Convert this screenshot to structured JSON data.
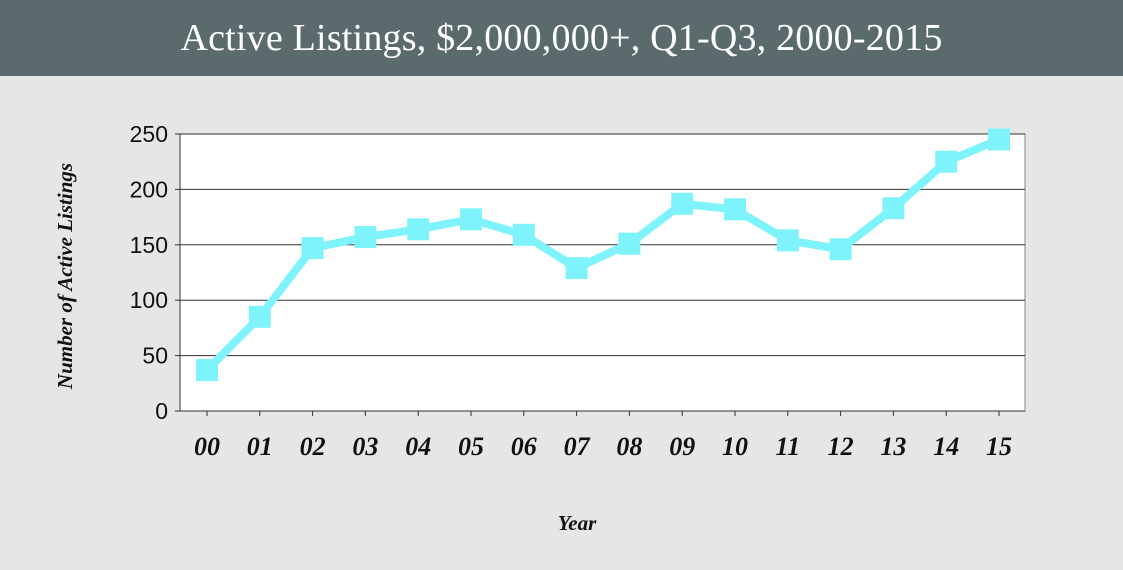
{
  "title": "Active Listings, $2,000,000+, Q1-Q3, 2000-2015",
  "colors": {
    "header_bg": "#5b6b6d",
    "page_bg": "#e6e6e6",
    "plot_bg": "#ffffff",
    "series": "#7ff3fb"
  },
  "chart_data": {
    "type": "line",
    "title": "Active Listings, $2,000,000+, Q1-Q3, 2000-2015",
    "xlabel": "Year",
    "ylabel": "Number of Active Listings",
    "categories": [
      "00",
      "01",
      "02",
      "03",
      "04",
      "05",
      "06",
      "07",
      "08",
      "09",
      "10",
      "11",
      "12",
      "13",
      "14",
      "15"
    ],
    "series": [
      {
        "values": [
          37,
          85,
          147,
          157,
          164,
          173,
          159,
          129,
          151,
          187,
          182,
          154,
          146,
          183,
          225,
          245
        ]
      }
    ],
    "ylim": [
      0,
      250
    ],
    "yticks": [
      0,
      50,
      100,
      150,
      200,
      250
    ],
    "grid": true,
    "marker": "square"
  }
}
